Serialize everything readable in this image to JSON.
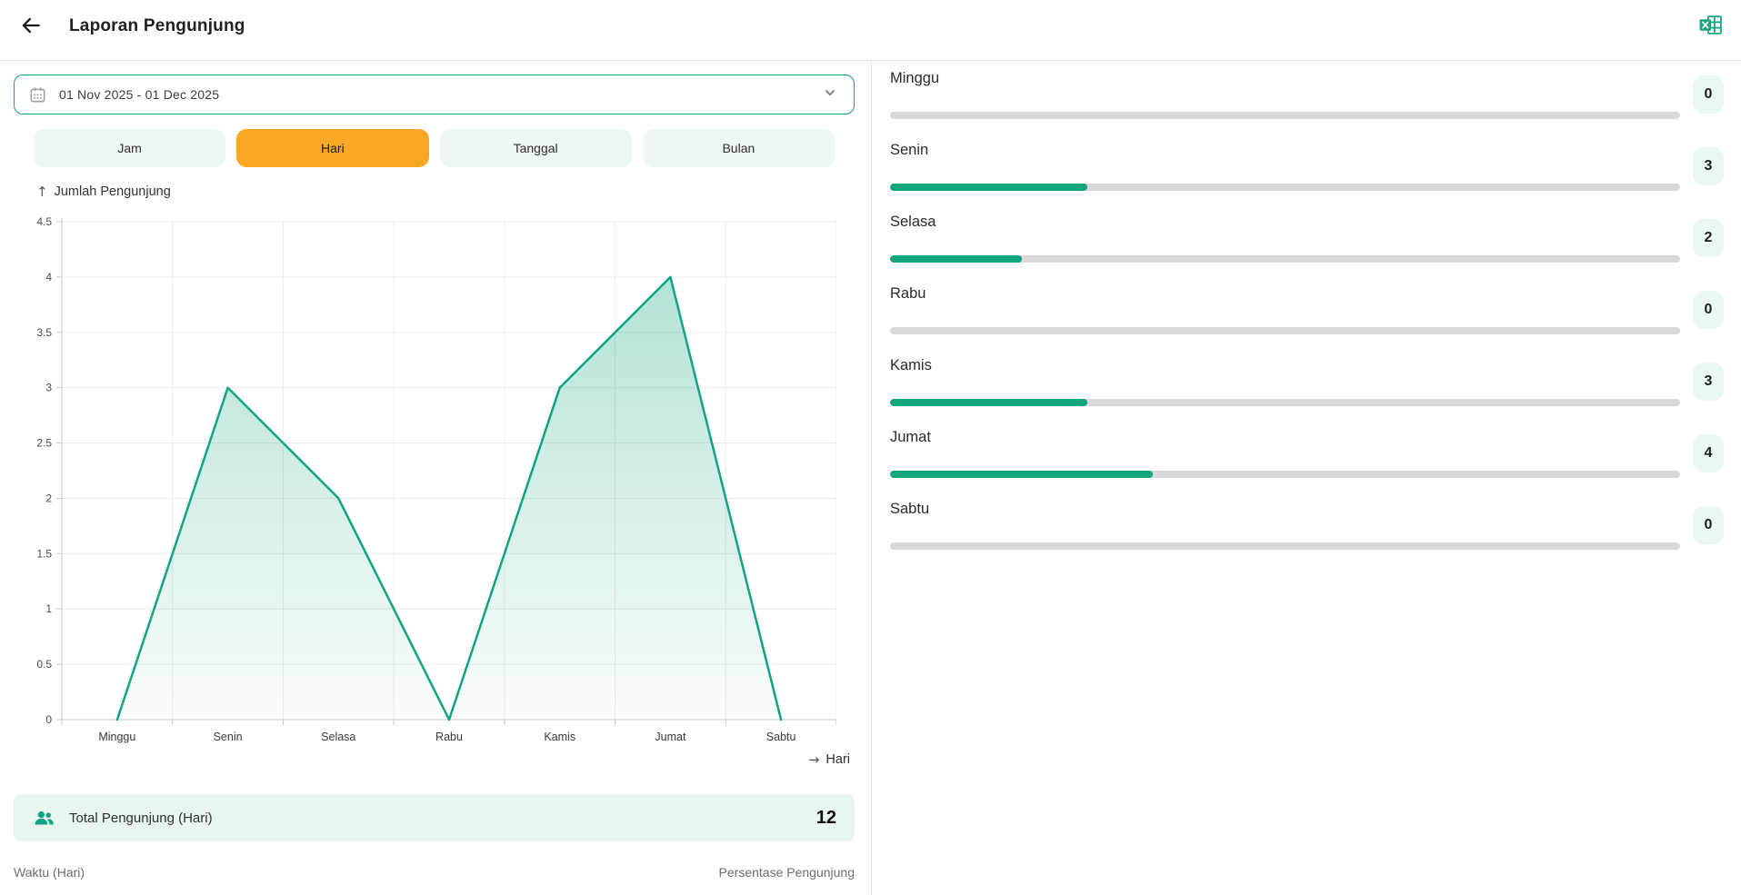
{
  "header": {
    "title": "Laporan Pengunjung"
  },
  "icons": {
    "back": "arrow-left-icon",
    "export": "excel-export-icon",
    "calendar": "calendar-icon",
    "dropdown": "chevron-down-icon",
    "y_axis_arrow": "arrow-up-icon",
    "x_axis_arrow": "arrow-right-icon",
    "total": "people-icon"
  },
  "glyphs": {
    "up_arrow": "↑",
    "right_arrow": "→"
  },
  "date_filter": {
    "value": "01 Nov 2025 - 01 Dec 2025"
  },
  "tabs": [
    {
      "label": "Jam",
      "active": false
    },
    {
      "label": "Hari",
      "active": true
    },
    {
      "label": "Tanggal",
      "active": false
    },
    {
      "label": "Bulan",
      "active": false
    }
  ],
  "chart_data": {
    "type": "area",
    "title": "Jumlah Pengunjung",
    "x": [
      "Minggu",
      "Senin",
      "Selasa",
      "Rabu",
      "Kamis",
      "Jumat",
      "Sabtu"
    ],
    "values": [
      0,
      3,
      2,
      0,
      3,
      4,
      0
    ],
    "ylabel": "Jumlah Pengunjung",
    "xlabel": "Hari",
    "ylim": [
      0,
      4.5
    ],
    "ytick_step": 0.5,
    "grid": true,
    "legend": "none",
    "line_color": "#10a57b",
    "area_opacity_top": 0.32,
    "area_opacity_bottom": 0.02
  },
  "summary": {
    "label": "Total Pengunjung (Hari)",
    "value": "12"
  },
  "captions": {
    "left": "Waktu (Hari)",
    "right": "Persentase Pengunjung"
  },
  "percent_panel": {
    "rows": [
      {
        "label": "Minggu",
        "value": "0",
        "percent": 0
      },
      {
        "label": "Senin",
        "value": "3",
        "percent": 25
      },
      {
        "label": "Selasa",
        "value": "2",
        "percent": 16.7
      },
      {
        "label": "Rabu",
        "value": "0",
        "percent": 0
      },
      {
        "label": "Kamis",
        "value": "3",
        "percent": 25
      },
      {
        "label": "Jumat",
        "value": "4",
        "percent": 33.3
      },
      {
        "label": "Sabtu",
        "value": "0",
        "percent": 0
      }
    ]
  },
  "colors": {
    "primary": "#10a57b",
    "accent_orange": "#f9a826",
    "tab_inactive_bg": "#edf8f3",
    "total_card_bg": "#e9f6f0",
    "badge_bg": "#ebf7f1",
    "bar_track": "#d9d9d9",
    "grid_line": "#ececec",
    "axis_line": "#c9c9c9",
    "muted_text": "#6e6e6e"
  }
}
